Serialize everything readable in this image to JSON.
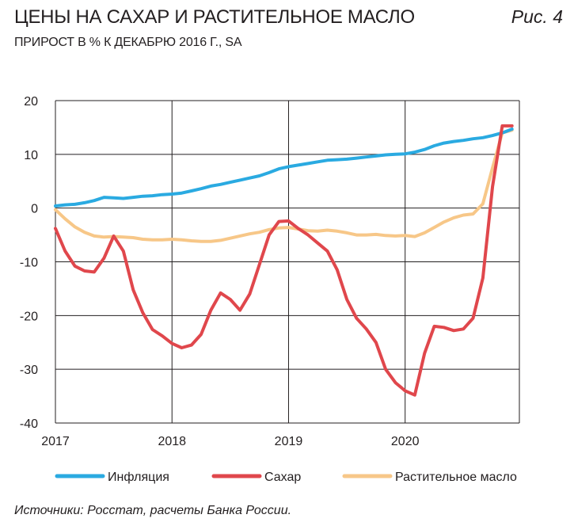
{
  "header": {
    "title": "ЦЕНЫ НА САХАР И РАСТИТЕЛЬНОЕ МАСЛО",
    "figure_label": "Рис. 4",
    "subtitle": "ПРИРОСТ В % К ДЕКАБРЮ 2016 Г., SA"
  },
  "footer": {
    "source": "Источники: Росстат, расчеты Банка России."
  },
  "chart_data": {
    "type": "line",
    "title": "ЦЕНЫ НА САХАР И РАСТИТЕЛЬНОЕ МАСЛО",
    "subtitle": "ПРИРОСТ В % К ДЕКАБРЮ 2016 Г., SA",
    "xlabel": "",
    "ylabel": "",
    "ylim": [
      -40,
      20
    ],
    "yticks": [
      20,
      10,
      0,
      -10,
      -20,
      -30,
      -40
    ],
    "xlim": [
      2017.0,
      2020.98
    ],
    "xticks": [
      2017,
      2018,
      2019,
      2020
    ],
    "x_tick_labels": [
      "2017",
      "2018",
      "2019",
      "2020"
    ],
    "grid": true,
    "legend_position": "bottom",
    "x": [
      2017.0,
      2017.083,
      2017.167,
      2017.25,
      2017.333,
      2017.417,
      2017.5,
      2017.583,
      2017.667,
      2017.75,
      2017.833,
      2017.917,
      2018.0,
      2018.083,
      2018.167,
      2018.25,
      2018.333,
      2018.417,
      2018.5,
      2018.583,
      2018.667,
      2018.75,
      2018.833,
      2018.917,
      2019.0,
      2019.083,
      2019.167,
      2019.25,
      2019.333,
      2019.417,
      2019.5,
      2019.583,
      2019.667,
      2019.75,
      2019.833,
      2019.917,
      2020.0,
      2020.083,
      2020.167,
      2020.25,
      2020.333,
      2020.417,
      2020.5,
      2020.583,
      2020.667,
      2020.75,
      2020.833,
      2020.917
    ],
    "series": [
      {
        "name": "Инфляция",
        "color": "#2aaae1",
        "values": [
          0.4,
          0.6,
          0.7,
          1.0,
          1.4,
          2.0,
          1.9,
          1.8,
          2.0,
          2.2,
          2.3,
          2.5,
          2.6,
          2.8,
          3.2,
          3.6,
          4.1,
          4.4,
          4.8,
          5.2,
          5.6,
          6.0,
          6.6,
          7.3,
          7.7,
          8.0,
          8.3,
          8.6,
          8.9,
          9.0,
          9.1,
          9.3,
          9.5,
          9.7,
          9.9,
          10.0,
          10.1,
          10.4,
          10.9,
          11.6,
          12.1,
          12.4,
          12.6,
          12.9,
          13.1,
          13.5,
          14.0,
          14.7
        ]
      },
      {
        "name": "Сахар",
        "color": "#e0474c",
        "values": [
          -3.8,
          -8.0,
          -10.8,
          -11.7,
          -11.9,
          -9.3,
          -5.2,
          -8.0,
          -15.2,
          -19.5,
          -22.6,
          -23.8,
          -25.2,
          -26.0,
          -25.5,
          -23.5,
          -19.0,
          -15.8,
          -17.0,
          -19.0,
          -16.0,
          -10.5,
          -5.0,
          -2.5,
          -2.4,
          -3.8,
          -5.0,
          -6.5,
          -8.0,
          -11.5,
          -17.0,
          -20.5,
          -22.5,
          -25.0,
          -30.0,
          -32.5,
          -34.0,
          -34.8,
          -27.0,
          -22.0,
          -22.2,
          -22.8,
          -22.5,
          -20.5,
          -13.0,
          4.0,
          15.3,
          15.3
        ]
      },
      {
        "name": "Растительное масло",
        "color": "#f7c788",
        "values": [
          -0.3,
          -2.0,
          -3.5,
          -4.5,
          -5.2,
          -5.4,
          -5.3,
          -5.4,
          -5.5,
          -5.8,
          -5.9,
          -5.9,
          -5.8,
          -5.9,
          -6.1,
          -6.2,
          -6.2,
          -6.0,
          -5.6,
          -5.2,
          -4.8,
          -4.5,
          -4.0,
          -3.7,
          -3.6,
          -3.9,
          -4.2,
          -4.3,
          -4.1,
          -4.3,
          -4.6,
          -5.0,
          -5.0,
          -4.9,
          -5.1,
          -5.2,
          -5.1,
          -5.3,
          -4.6,
          -3.6,
          -2.6,
          -1.8,
          -1.3,
          -1.1,
          0.8,
          7.5,
          14.0,
          14.5
        ]
      }
    ]
  }
}
